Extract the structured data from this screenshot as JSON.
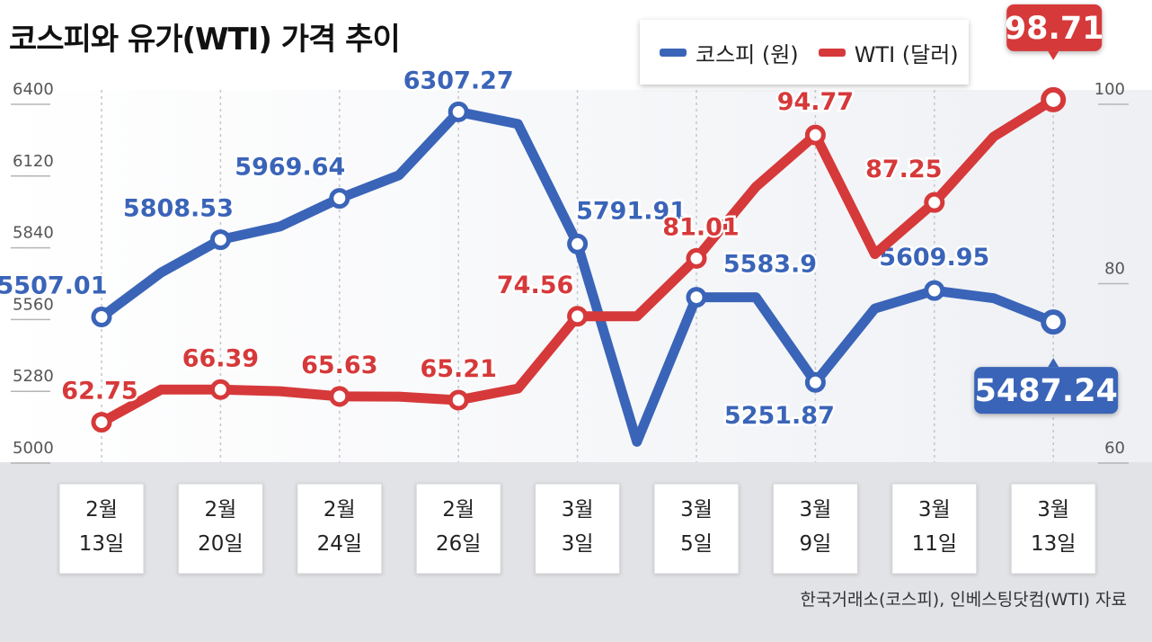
{
  "title": "코스피와 유가(WTI) 가격 추이",
  "source": "한국거래소(코스피), 인베스팅닷컴(WTI) 자료",
  "colors": {
    "kospi": "#3a64b8",
    "wti": "#d6393a",
    "band": "#e2e3e7"
  },
  "chart_data": {
    "type": "line",
    "categories": [
      "2월\n13일",
      "",
      "2월\n20일",
      "",
      "2월\n24일",
      "",
      "2월\n26일",
      "",
      "3월\n3일",
      "",
      "3월\n5일",
      "",
      "3월\n9일",
      "",
      "3월\n11일",
      "",
      "3월\n13일"
    ],
    "left_axis": {
      "ticks": [
        "6400",
        "6120",
        "5840",
        "5560",
        "5280",
        "5000"
      ],
      "ylim": [
        5000,
        6400
      ]
    },
    "right_axis": {
      "ticks": [
        "100",
        "80",
        "60"
      ],
      "ylim": [
        60,
        100
      ]
    },
    "series": [
      {
        "name": "코스피 (원)",
        "axis": "left",
        "color": "#3a64b8",
        "values": [
          5507.01,
          5680,
          5808.53,
          5860,
          5969.64,
          6060,
          6307.27,
          6260,
          5791.91,
          5020,
          5583.9,
          5583.9,
          5251.87,
          5540,
          5609.95,
          5580,
          5487.24
        ],
        "labels": [
          "5507.01",
          "",
          "5808.53",
          "",
          "5969.64",
          "",
          "6307.27",
          "",
          "5791.91",
          "",
          "5583.9",
          "",
          "5251.87",
          "",
          "5609.95",
          "",
          "5487.24"
        ],
        "highlight_last": true
      },
      {
        "name": "WTI (달러)",
        "axis": "right",
        "color": "#d6393a",
        "values": [
          62.75,
          66.39,
          66.39,
          66.2,
          65.63,
          65.6,
          65.21,
          66.5,
          74.56,
          74.56,
          81.01,
          89.0,
          94.77,
          81.5,
          87.25,
          94.6,
          98.71
        ],
        "labels": [
          "62.75",
          "",
          "66.39",
          "",
          "65.63",
          "",
          "65.21",
          "",
          "74.56",
          "",
          "81.01",
          "",
          "94.77",
          "",
          "87.25",
          "",
          "98.71"
        ],
        "highlight_last": true
      }
    ],
    "legend": "top-right",
    "grid": "vertical dotted at labeled dates"
  }
}
